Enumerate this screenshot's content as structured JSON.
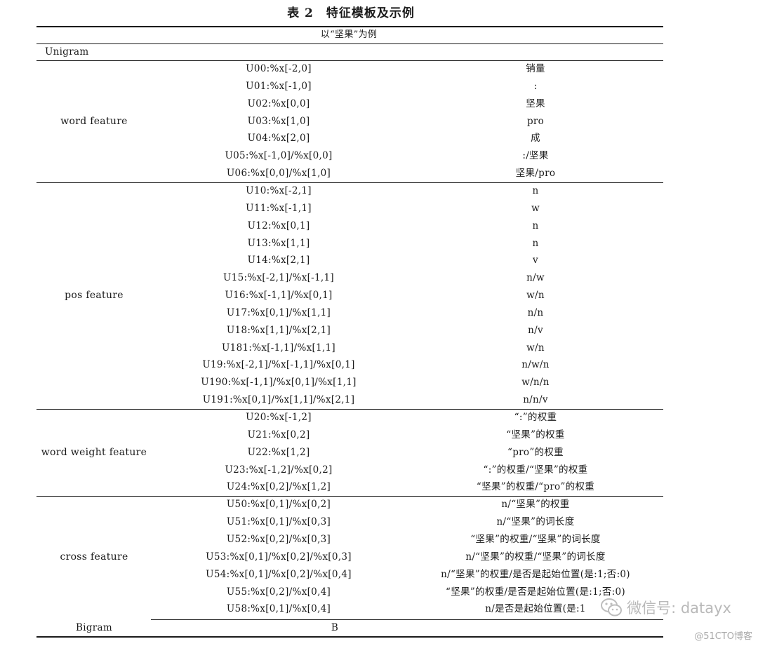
{
  "title": "表 2　特征模板及示例",
  "subtitle": "以“坚果”为例",
  "unigram_label": "Unigram",
  "bigram": {
    "label": "Bigram",
    "template": "B"
  },
  "groups": [
    {
      "name": "word feature",
      "rows": [
        {
          "template": "U00:%x[-2,0]",
          "example": "销量"
        },
        {
          "template": "U01:%x[-1,0]",
          "example": ":"
        },
        {
          "template": "U02:%x[0,0]",
          "example": "坚果"
        },
        {
          "template": "U03:%x[1,0]",
          "example": "pro"
        },
        {
          "template": "U04:%x[2,0]",
          "example": "成"
        },
        {
          "template": "U05:%x[-1,0]/%x[0,0]",
          "example": ":/坚果"
        },
        {
          "template": "U06:%x[0,0]/%x[1,0]",
          "example": "坚果/pro"
        }
      ]
    },
    {
      "name": "pos feature",
      "rows": [
        {
          "template": "U10:%x[-2,1]",
          "example": "n"
        },
        {
          "template": "U11:%x[-1,1]",
          "example": "w"
        },
        {
          "template": "U12:%x[0,1]",
          "example": "n"
        },
        {
          "template": "U13:%x[1,1]",
          "example": "n"
        },
        {
          "template": "U14:%x[2,1]",
          "example": "v"
        },
        {
          "template": "U15:%x[-2,1]/%x[-1,1]",
          "example": "n/w"
        },
        {
          "template": "U16:%x[-1,1]/%x[0,1]",
          "example": "w/n"
        },
        {
          "template": "U17:%x[0,1]/%x[1,1]",
          "example": "n/n"
        },
        {
          "template": "U18:%x[1,1]/%x[2,1]",
          "example": "n/v"
        },
        {
          "template": "U181:%x[-1,1]/%x[1,1]",
          "example": "w/n"
        },
        {
          "template": "U19:%x[-2,1]/%x[-1,1]/%x[0,1]",
          "example": "n/w/n"
        },
        {
          "template": "U190:%x[-1,1]/%x[0,1]/%x[1,1]",
          "example": "w/n/n"
        },
        {
          "template": "U191:%x[0,1]/%x[1,1]/%x[2,1]",
          "example": "n/n/v"
        }
      ]
    },
    {
      "name": "word weight feature",
      "rows": [
        {
          "template": "U20:%x[-1,2]",
          "example": "“:”的权重"
        },
        {
          "template": "U21:%x[0,2]",
          "example": "“坚果”的权重"
        },
        {
          "template": "U22:%x[1,2]",
          "example": "“pro”的权重"
        },
        {
          "template": "U23:%x[-1,2]/%x[0,2]",
          "example": "“:”的权重/“坚果”的权重"
        },
        {
          "template": "U24:%x[0,2]/%x[1,2]",
          "example": "“坚果”的权重/“pro”的权重"
        }
      ]
    },
    {
      "name": "cross feature",
      "rows": [
        {
          "template": "U50:%x[0,1]/%x[0,2]",
          "example": "n/“坚果”的权重"
        },
        {
          "template": "U51:%x[0,1]/%x[0,3]",
          "example": "n/“坚果”的词长度"
        },
        {
          "template": "U52:%x[0,2]/%x[0,3]",
          "example": "“坚果”的权重/“坚果”的词长度"
        },
        {
          "template": "U53:%x[0,1]/%x[0,2]/%x[0,3]",
          "example": "n/“坚果”的权重/“坚果”的词长度"
        },
        {
          "template": "U54:%x[0,1]/%x[0,2]/%x[0,4]",
          "example": "n/“坚果”的权重/是否是起始位置(是:1;否:0)"
        },
        {
          "template": "U55:%x[0,2]/%x[0,4]",
          "example": "“坚果”的权重/是否是起始位置(是:1;否:0)"
        },
        {
          "template": "U58:%x[0,1]/%x[0,4]",
          "example": "n/是否是起始位置(是:1"
        }
      ]
    }
  ],
  "watermark": {
    "text": "微信号: datayx",
    "icon": "wechat-icon"
  },
  "watermark2": "@51CTO博客"
}
